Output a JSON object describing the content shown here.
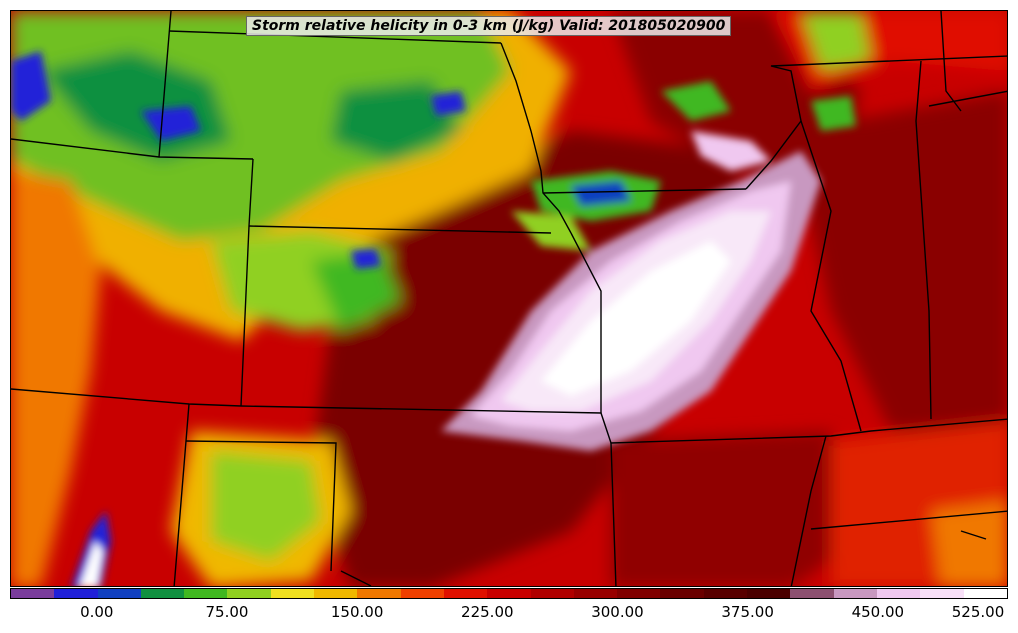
{
  "title": "Storm relative helicity in 0-3 km (J/kg) Valid: 201805020900",
  "colorbar": {
    "colors": [
      "#7a3c9c",
      "#2020d8",
      "#1040c0",
      "#109040",
      "#40b820",
      "#90d020",
      "#f0e020",
      "#f0b800",
      "#f07800",
      "#f04000",
      "#e01000",
      "#c80000",
      "#b00000",
      "#980000",
      "#800000",
      "#6a0000",
      "#580000",
      "#4a0000",
      "#8c5070",
      "#c898c0",
      "#f0c8f0",
      "#f8e0f8",
      "#ffffff"
    ],
    "tick_labels": [
      {
        "label": "0.00",
        "index": 2
      },
      {
        "label": "75.00",
        "index": 5
      },
      {
        "label": "150.00",
        "index": 8
      },
      {
        "label": "225.00",
        "index": 11
      },
      {
        "label": "300.00",
        "index": 14
      },
      {
        "label": "375.00",
        "index": 17
      },
      {
        "label": "450.00",
        "index": 20
      },
      {
        "label": "525.00",
        "index": 23
      }
    ]
  }
}
